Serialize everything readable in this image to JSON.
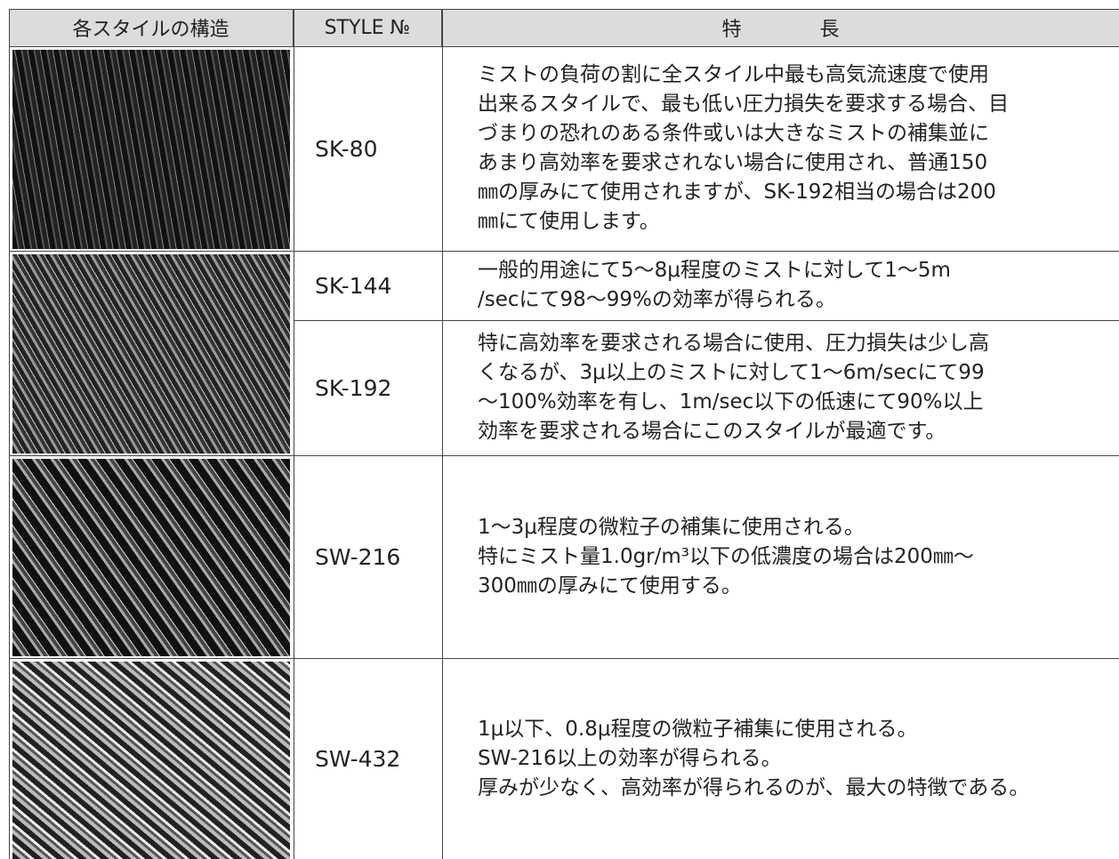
{
  "header": [
    "各スタイルの構造",
    "STYLE №",
    "特　　　　長"
  ],
  "rows": [
    {
      "style": "SK-80",
      "lines": [
        "ミストの負荷の割に全スタイル中最も高気流速度で使用",
        "出来るスタイルで、最も低い圧力損失を要求する場合、目",
        "づまりの恐れのある条件或いは大きなミストの補集並に",
        "あまり高効率を要求されない場合に使用され、普通150",
        "㎜の厚みにて使用されますが、SK-192相当の場合は200",
        "㎜にて使用します。"
      ]
    },
    {
      "style": "SK-144",
      "lines": [
        "一般的用途にて5～8μ程度のミストに対して1～5m",
        "/secにて98～99%の効率が得られる。"
      ]
    },
    {
      "style": "SK-192",
      "lines": [
        "特に高効率を要求される場合に使用、圧力損失は少し高",
        "くなるが、3μ以上のミストに対して1～6m/secにて99",
        "～100%効率を有し、1m/sec以下の低速にて90%以上",
        "効率を要求される場合にこのスタイルが最適です。"
      ]
    },
    {
      "style": "SW-216",
      "lines": [
        "1～3μ程度の微粒子の補集に使用される。",
        "特にミスト量1.0gr/m³以下の低濃度の場合は200㎜～",
        "300㎜の厚みにて使用する。"
      ]
    },
    {
      "style": "SW-432",
      "lines": [
        "1μ以下、0.8μ程度の微粒子補集に使用される。",
        "SW-216以上の効率が得られる。",
        "厚みが少なく、高効率が得られるのが、最大の特徴である。"
      ]
    }
  ]
}
